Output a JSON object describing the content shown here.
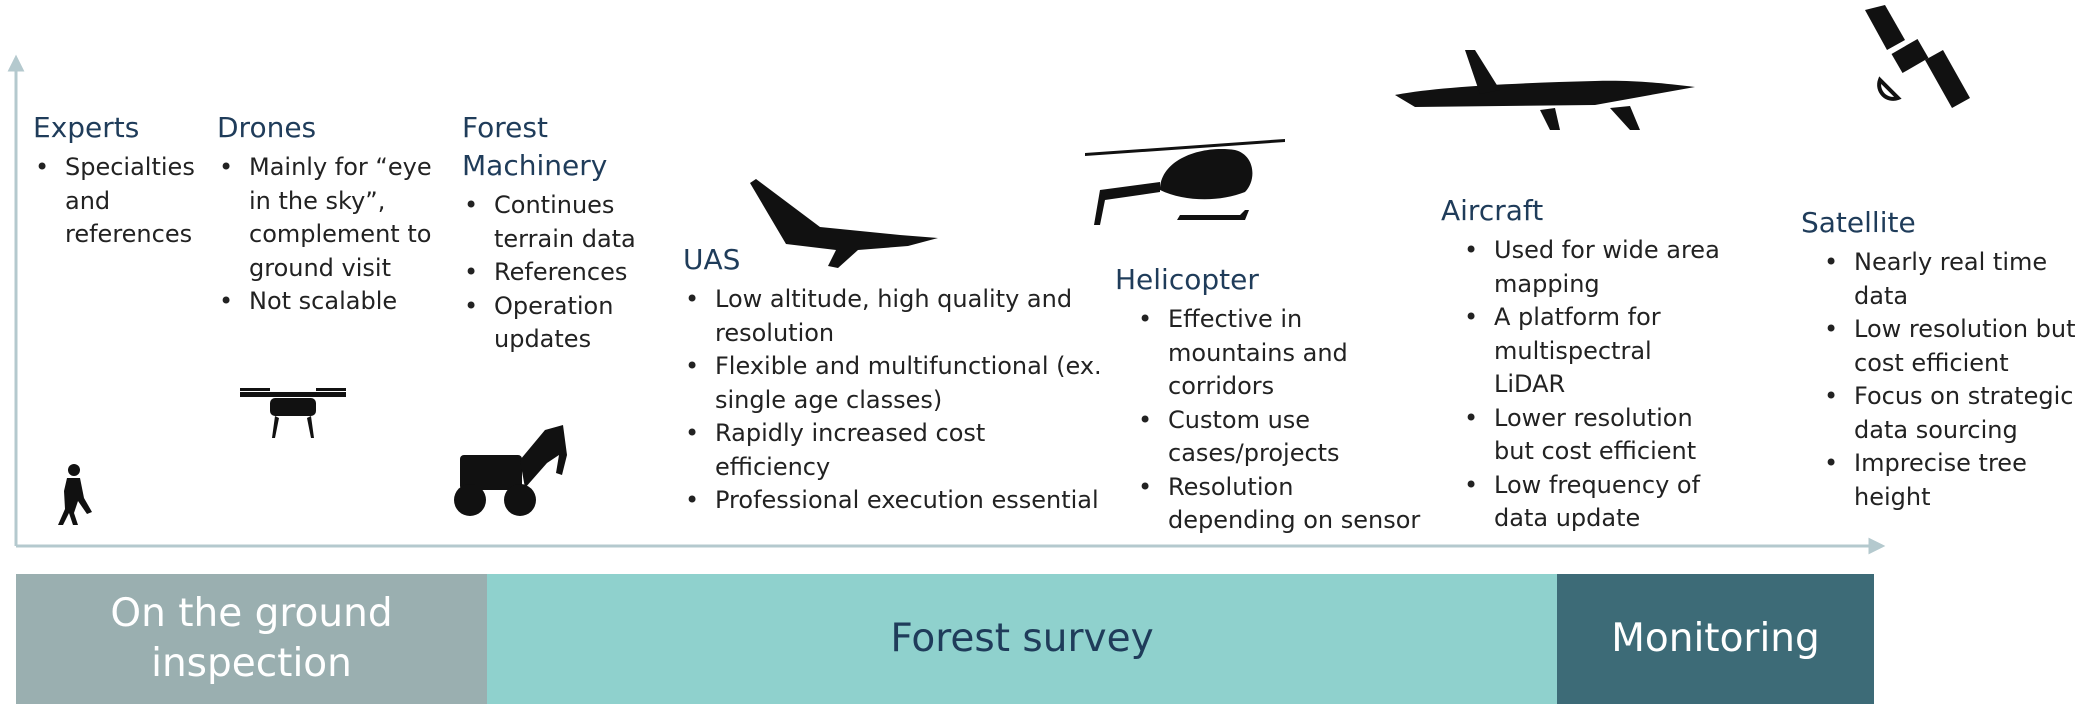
{
  "columns": [
    {
      "title": "Experts",
      "bullets": [
        "Specialties and references"
      ]
    },
    {
      "title": "Drones",
      "bullets": [
        "Mainly for “eye in the sky”, complement to ground visit",
        "Not scalable"
      ]
    },
    {
      "title": "Forest Machinery",
      "bullets": [
        "Continues terrain data",
        "References",
        "Operation updates"
      ]
    },
    {
      "title": "UAS",
      "bullets": [
        "Low altitude, high quality and resolution",
        "Flexible and multifunctional (ex. single age classes)",
        "Rapidly increased cost efficiency",
        "Professional execution essential"
      ]
    },
    {
      "title": "Helicopter",
      "bullets": [
        "Effective in mountains and corridors",
        "Custom use cases/projects",
        "Resolution depending on sensor"
      ]
    },
    {
      "title": "Aircraft",
      "bullets": [
        "Used for wide area mapping",
        "A platform for multispectral LiDAR",
        "Lower resolution but cost efficient",
        "Low frequency of data update"
      ]
    },
    {
      "title": "Satellite",
      "bullets": [
        "Nearly real time data",
        "Low resolution but cost efficient",
        "Focus on strategic data sourcing",
        "Imprecise tree height"
      ]
    }
  ],
  "bands": [
    "On the ground inspection",
    "Forest survey",
    "Monitoring"
  ]
}
